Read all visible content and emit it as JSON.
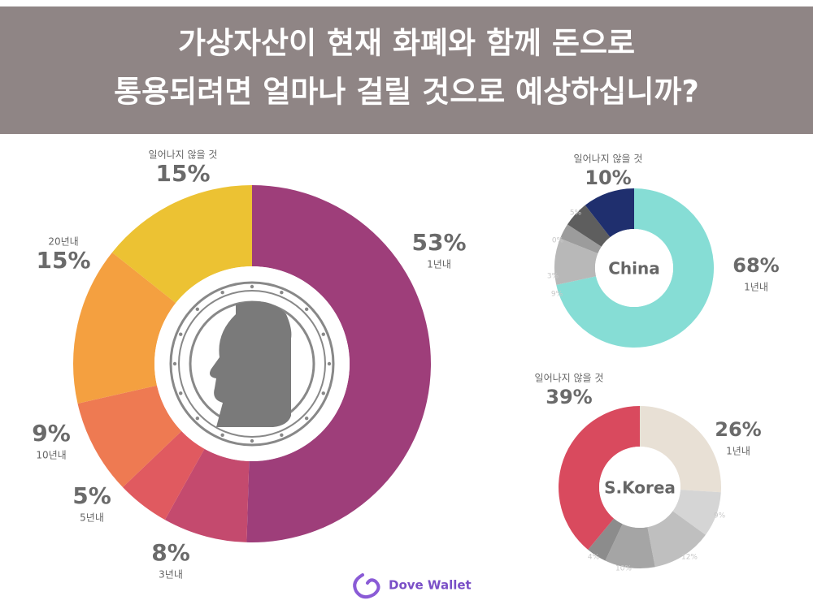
{
  "header": {
    "title": [
      "가상자산이 현재 화폐와 함께 돈으로",
      "통용되려면 얼마나 걸릴 것으로 예상하십니까?"
    ]
  },
  "chart_data": [
    {
      "type": "donut",
      "categories": [
        "1년내",
        "3년내",
        "5년내",
        "10년내",
        "20년내",
        "일어나지 않을 것"
      ],
      "values": [
        53,
        8,
        5,
        9,
        15,
        15
      ],
      "value_labels": [
        "53%",
        "8%",
        "5%",
        "9%",
        "15%",
        "15%"
      ],
      "colors": [
        "#9e3e7a",
        "#c44a6e",
        "#e05a60",
        "#ee7a52",
        "#f4a040",
        "#ecc233"
      ]
    },
    {
      "type": "donut",
      "label": "China",
      "categories": [
        "1년내",
        null,
        null,
        null,
        null,
        "일어나지 않을 것"
      ],
      "values": [
        68,
        9,
        3,
        0,
        5,
        10
      ],
      "value_labels": [
        "68%",
        "9%",
        "3%",
        "0%",
        "5%",
        "10%"
      ],
      "colors": [
        "#86ddd5",
        "#b8b8b8",
        "#9c9c9c",
        "#7c7c7c",
        "#5e5e5e",
        "#1f2f6e"
      ]
    },
    {
      "type": "donut",
      "label": "S.Korea",
      "categories": [
        "1년내",
        null,
        null,
        null,
        null,
        "일어나지 않을 것"
      ],
      "values": [
        26,
        9,
        12,
        10,
        4,
        39
      ],
      "value_labels": [
        "26%",
        "9%",
        "12%",
        "10%",
        "4%",
        "39%"
      ],
      "colors": [
        "#e8e0d5",
        "#d5d5d5",
        "#bfbfbf",
        "#a5a5a5",
        "#8c8c8c",
        "#d94a5e"
      ]
    }
  ],
  "footer": {
    "brand": "Dove Wallet"
  }
}
